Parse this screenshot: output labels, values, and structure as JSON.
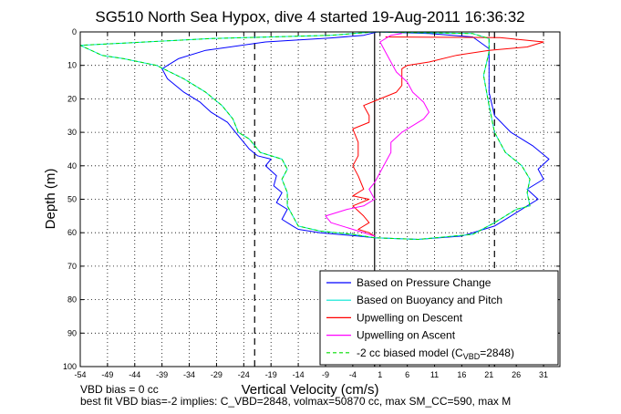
{
  "chart_data": {
    "type": "line",
    "title": "SG510 North Sea Hypox, dive 4 started 19-Aug-2011 16:36:32",
    "xlabel": "Vertical Velocity (cm/s)",
    "ylabel": "Depth (m)",
    "xlim": [
      -54,
      34
    ],
    "ylim": [
      0,
      100
    ],
    "y_reversed": true,
    "grid": true,
    "x_ticks": [
      -54,
      -49,
      -44,
      -39,
      -34,
      -29,
      -24,
      -19,
      -14,
      -9,
      -4,
      1,
      6,
      11,
      16,
      21,
      26,
      31
    ],
    "y_ticks": [
      0,
      10,
      20,
      30,
      40,
      50,
      60,
      70,
      80,
      90,
      100
    ],
    "legend_position": "bottom-right",
    "legend": [
      {
        "label": "Based on Pressure Change",
        "color": "#0000ff",
        "style": "solid"
      },
      {
        "label": "Based on Buoyancy and Pitch",
        "color": "#00e5d4",
        "style": "solid"
      },
      {
        "label": "Upwelling on Descent",
        "color": "#ff0000",
        "style": "solid"
      },
      {
        "label": "Upwelling on Ascent",
        "color": "#ff00ff",
        "style": "solid"
      },
      {
        "label_prefix": "-2 cc biased model (C",
        "label_sub": "VBD",
        "label_suffix": "=2848)",
        "color": "#00dd00",
        "style": "dashed"
      }
    ],
    "vlines": [
      {
        "x": -22,
        "style": "dashed",
        "color": "#000000"
      },
      {
        "x": 0,
        "style": "solid",
        "color": "#000000"
      },
      {
        "x": 22,
        "style": "dashed",
        "color": "#000000"
      }
    ],
    "series": [
      {
        "key": "pressure",
        "color": "#0000ff",
        "points": [
          [
            0.5,
            0
          ],
          [
            -2,
            1
          ],
          [
            -8,
            1.8
          ],
          [
            -20,
            3
          ],
          [
            -31,
            5.5
          ],
          [
            -36,
            8
          ],
          [
            -39,
            11
          ],
          [
            -38,
            14
          ],
          [
            -35,
            18
          ],
          [
            -32,
            21
          ],
          [
            -30,
            24
          ],
          [
            -27,
            27
          ],
          [
            -25,
            31
          ],
          [
            -24,
            33
          ],
          [
            -23,
            35
          ],
          [
            -21.5,
            37
          ],
          [
            -19,
            38
          ],
          [
            -20,
            40
          ],
          [
            -18,
            43
          ],
          [
            -18.5,
            46
          ],
          [
            -17,
            48
          ],
          [
            -18,
            51
          ],
          [
            -16,
            53
          ],
          [
            -17,
            56
          ],
          [
            -15,
            58
          ],
          [
            -14,
            59
          ],
          [
            -10,
            60
          ],
          [
            -3,
            61
          ],
          [
            0,
            61.5
          ],
          [
            8,
            62
          ],
          [
            16,
            61
          ],
          [
            22,
            58
          ],
          [
            25,
            55
          ],
          [
            28,
            52
          ],
          [
            30,
            50
          ],
          [
            28,
            47
          ],
          [
            31,
            44
          ],
          [
            30,
            41
          ],
          [
            32,
            38
          ],
          [
            29,
            34
          ],
          [
            25,
            30
          ],
          [
            22,
            25
          ],
          [
            21,
            18
          ],
          [
            21,
            12
          ],
          [
            21,
            5
          ],
          [
            18,
            1.5
          ],
          [
            10,
            0.5
          ],
          [
            0.5,
            0
          ]
        ]
      },
      {
        "key": "buoyancy",
        "color": "#00e5d4",
        "points": [
          [
            0,
            0
          ],
          [
            -8,
            1
          ],
          [
            -30,
            2
          ],
          [
            -54,
            4
          ],
          [
            -50,
            7
          ],
          [
            -46,
            8
          ],
          [
            -40,
            10
          ],
          [
            -35,
            14
          ],
          [
            -31,
            18
          ],
          [
            -28,
            22
          ],
          [
            -26,
            26
          ],
          [
            -25,
            30
          ],
          [
            -23,
            32
          ],
          [
            -21,
            36
          ],
          [
            -17,
            38
          ],
          [
            -16,
            41
          ],
          [
            -17,
            44
          ],
          [
            -16,
            48
          ],
          [
            -16,
            52
          ],
          [
            -15,
            55
          ],
          [
            -14,
            58
          ],
          [
            -10,
            59.5
          ],
          [
            -4,
            60.5
          ],
          [
            0,
            61.5
          ],
          [
            8,
            62
          ],
          [
            18,
            60.5
          ],
          [
            22,
            57
          ],
          [
            26,
            53
          ],
          [
            28.5,
            52
          ],
          [
            28,
            48
          ],
          [
            28.5,
            44
          ],
          [
            27,
            40
          ],
          [
            24,
            36
          ],
          [
            22,
            30
          ],
          [
            21,
            22
          ],
          [
            20,
            13
          ],
          [
            21,
            6
          ],
          [
            21,
            2
          ],
          [
            18,
            0.5
          ],
          [
            0,
            0
          ]
        ]
      },
      {
        "key": "upwell_descent",
        "color": "#ff0000",
        "points": [
          [
            2,
            1.5
          ],
          [
            12,
            1.6
          ],
          [
            23,
            1.7
          ],
          [
            31,
            3
          ],
          [
            28,
            4.5
          ],
          [
            21,
            5.5
          ],
          [
            15,
            7
          ],
          [
            10,
            9
          ],
          [
            6,
            10
          ],
          [
            5,
            11
          ],
          [
            5,
            14
          ],
          [
            5,
            16
          ],
          [
            4,
            18
          ],
          [
            1,
            20
          ],
          [
            -2,
            22
          ],
          [
            -1,
            25
          ],
          [
            -1,
            27
          ],
          [
            -4,
            29
          ],
          [
            -3,
            33
          ],
          [
            -3,
            37
          ],
          [
            -4,
            40
          ],
          [
            -3,
            43
          ],
          [
            -2,
            47
          ],
          [
            -4,
            49
          ],
          [
            -1,
            50
          ],
          [
            -4,
            52
          ],
          [
            -2,
            55
          ],
          [
            -1,
            57
          ],
          [
            -3,
            59
          ],
          [
            -1,
            60
          ],
          [
            0,
            61
          ]
        ]
      },
      {
        "key": "upwell_ascent",
        "color": "#ff00ff",
        "points": [
          [
            0,
            61
          ],
          [
            -4,
            59
          ],
          [
            -8,
            57
          ],
          [
            -9,
            55
          ],
          [
            -5,
            53
          ],
          [
            -2,
            52
          ],
          [
            0,
            50
          ],
          [
            -1,
            47
          ],
          [
            0,
            45
          ],
          [
            1,
            42
          ],
          [
            2,
            39
          ],
          [
            3,
            36
          ],
          [
            3,
            33
          ],
          [
            5,
            30
          ],
          [
            7,
            28
          ],
          [
            9,
            26
          ],
          [
            10,
            24
          ],
          [
            9,
            21
          ],
          [
            7,
            18
          ],
          [
            6,
            15
          ],
          [
            4,
            12
          ],
          [
            3,
            9
          ],
          [
            2,
            6
          ],
          [
            1,
            3
          ],
          [
            3,
            1
          ],
          [
            5,
            0.5
          ]
        ]
      },
      {
        "key": "biased_model",
        "color": "#00dd00",
        "dashed": true,
        "points": [
          [
            0,
            0
          ],
          [
            -8,
            1
          ],
          [
            -30,
            2
          ],
          [
            -54,
            4
          ],
          [
            -50,
            7
          ],
          [
            -46,
            8
          ],
          [
            -40,
            10
          ],
          [
            -35,
            14
          ],
          [
            -31,
            18
          ],
          [
            -28,
            22
          ],
          [
            -26,
            26
          ],
          [
            -25,
            30
          ],
          [
            -23,
            32
          ],
          [
            -21,
            36
          ],
          [
            -17,
            38
          ],
          [
            -16,
            41
          ],
          [
            -17,
            44
          ],
          [
            -16,
            48
          ],
          [
            -16,
            52
          ],
          [
            -15,
            55
          ],
          [
            -14,
            58
          ],
          [
            -10,
            59.5
          ],
          [
            -4,
            60.5
          ],
          [
            0,
            61.5
          ],
          [
            8,
            62
          ],
          [
            18,
            60.5
          ],
          [
            22,
            57
          ],
          [
            26,
            53
          ],
          [
            28.5,
            52
          ],
          [
            28,
            48
          ],
          [
            28.5,
            44
          ],
          [
            27,
            40
          ],
          [
            24,
            36
          ],
          [
            22,
            30
          ],
          [
            21,
            22
          ],
          [
            20,
            13
          ],
          [
            21,
            6
          ],
          [
            21,
            2
          ],
          [
            18,
            0.5
          ],
          [
            0,
            0
          ]
        ]
      }
    ]
  },
  "footer": {
    "line1": "VBD bias = 0 cc",
    "line2": "best fit VBD bias=-2 implies: C_VBD=2848, volmax=50870 cc, max SM_CC=590, max M"
  }
}
